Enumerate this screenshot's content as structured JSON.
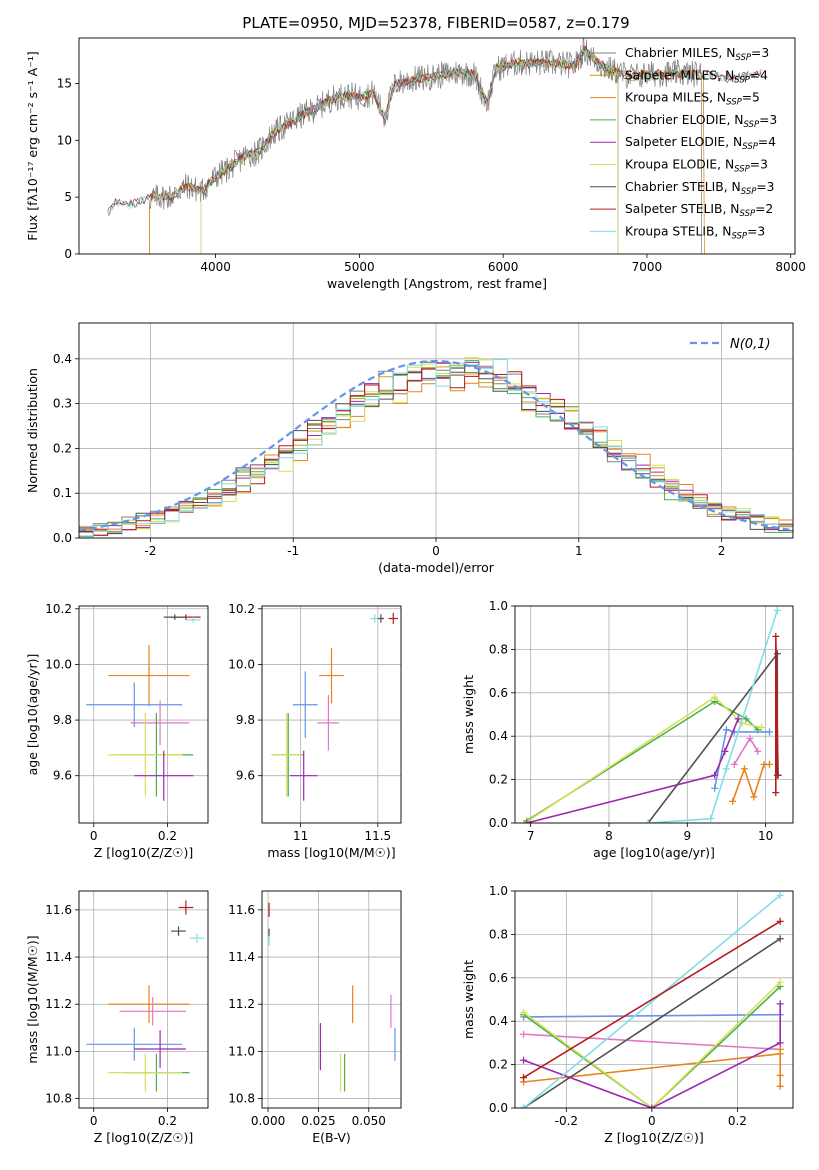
{
  "figure": {
    "title": "PLATE=0950, MJD=52378, FIBERID=0587, z=0.179"
  },
  "chart_data": [
    {
      "id": "spectrum",
      "type": "line",
      "xlabel": "wavelength [Angstrom, rest frame]",
      "ylabel": "Flux [fλ10⁻¹⁷ erg cm⁻² s⁻¹ A⁻¹]",
      "xlim": [
        3050,
        8030
      ],
      "ylim": [
        0,
        19
      ],
      "xticks": [
        4000,
        5000,
        6000,
        7000,
        8000
      ],
      "yticks": [
        0,
        5,
        10,
        15
      ],
      "grid": false,
      "legend_position": "right",
      "spectrum_anchors": [
        [
          3250,
          3.5
        ],
        [
          3300,
          4.6
        ],
        [
          3400,
          4.3
        ],
        [
          3500,
          4.8
        ],
        [
          3600,
          5.0
        ],
        [
          3700,
          5.1
        ],
        [
          3750,
          5.6
        ],
        [
          3800,
          6.0
        ],
        [
          3900,
          5.5
        ],
        [
          4000,
          6.8
        ],
        [
          4100,
          7.6
        ],
        [
          4200,
          8.6
        ],
        [
          4300,
          9.0
        ],
        [
          4400,
          10.6
        ],
        [
          4500,
          11.4
        ],
        [
          4600,
          12.2
        ],
        [
          4700,
          12.8
        ],
        [
          4800,
          13.6
        ],
        [
          4900,
          14.0
        ],
        [
          5000,
          13.8
        ],
        [
          5100,
          14.2
        ],
        [
          5175,
          12.0
        ],
        [
          5250,
          15.0
        ],
        [
          5400,
          15.4
        ],
        [
          5500,
          15.6
        ],
        [
          5600,
          15.8
        ],
        [
          5700,
          16.0
        ],
        [
          5800,
          15.8
        ],
        [
          5890,
          13.2
        ],
        [
          5950,
          16.3
        ],
        [
          6100,
          16.8
        ],
        [
          6300,
          16.8
        ],
        [
          6500,
          16.6
        ],
        [
          6563,
          18.0
        ],
        [
          6700,
          16.4
        ],
        [
          6900,
          15.6
        ],
        [
          7000,
          15.8
        ],
        [
          7200,
          15.9
        ],
        [
          7400,
          15.8
        ],
        [
          7600,
          15.4
        ],
        [
          7800,
          16.0
        ]
      ],
      "series": [
        {
          "name": "Chabrier MILES, N",
          "subscript": "SSP",
          "count": "=3",
          "color": "#808080",
          "range": [
            3540,
            7380
          ]
        },
        {
          "name": "Salpeter MILES, N",
          "subscript": "SSP",
          "count": "=4",
          "color": "#c6a020",
          "range": [
            3540,
            7400
          ]
        },
        {
          "name": "Kroupa MILES, N",
          "subscript": "SSP",
          "count": "=5",
          "color": "#e8831e",
          "range": [
            3540,
            7400
          ]
        },
        {
          "name": "Chabrier ELODIE, N",
          "subscript": "SSP",
          "count": "=3",
          "color": "#4caf50",
          "range": [
            3900,
            6800
          ]
        },
        {
          "name": "Salpeter ELODIE, N",
          "subscript": "SSP",
          "count": "=4",
          "color": "#9c27b0",
          "range": [
            3900,
            6800
          ]
        },
        {
          "name": "Kroupa ELODIE, N",
          "subscript": "SSP",
          "count": "=3",
          "color": "#d4e157",
          "range": [
            3900,
            6800
          ]
        },
        {
          "name": "Chabrier STELIB, N",
          "subscript": "SSP",
          "count": "=3",
          "color": "#505050",
          "range": [
            3250,
            7800
          ]
        },
        {
          "name": "Salpeter STELIB, N",
          "subscript": "SSP",
          "count": "=2",
          "color": "#b71c1c",
          "range": [
            3250,
            7800
          ]
        },
        {
          "name": "Kroupa STELIB, N",
          "subscript": "SSP",
          "count": "=3",
          "color": "#80deea",
          "range": [
            3250,
            7800
          ]
        }
      ]
    },
    {
      "id": "residuals",
      "type": "line",
      "xlabel": "(data-model)/error",
      "ylabel": "Normed distribution",
      "xlim": [
        -2.5,
        2.5
      ],
      "ylim": [
        0,
        0.48
      ],
      "xticks": [
        -2,
        -1,
        0,
        1,
        2
      ],
      "yticks": [
        0.0,
        0.1,
        0.2,
        0.3,
        0.4
      ],
      "grid": true,
      "legend_position": "top-right",
      "reference": {
        "name": "N(0,1)",
        "color": "#6495ed",
        "style": "dashed"
      },
      "bin_width": 0.1,
      "histogram_colors": [
        "#808080",
        "#c6a020",
        "#e8831e",
        "#4caf50",
        "#9c27b0",
        "#d4e157",
        "#505050",
        "#b71c1c",
        "#80deea"
      ]
    },
    {
      "id": "age-vs-Z",
      "type": "scatter",
      "xlabel": "Z [log10(Z/Z☉)]",
      "ylabel": "age  [log10(age/yr)]",
      "xlim": [
        -0.04,
        0.31
      ],
      "ylim": [
        9.43,
        10.21
      ],
      "xticks": [
        0.0,
        0.2
      ],
      "yticks": [
        9.6,
        9.8,
        10.0,
        10.2
      ],
      "grid": true,
      "points": [
        {
          "x": 0.25,
          "xerr": 0.04,
          "y": 10.17,
          "yerr": 0.01,
          "color": "#b71c1c"
        },
        {
          "x": 0.22,
          "xerr": 0.03,
          "y": 10.17,
          "yerr": 0.01,
          "color": "#505050"
        },
        {
          "x": 0.27,
          "xerr": 0.02,
          "y": 10.16,
          "yerr": 0.01,
          "color": "#80deea"
        },
        {
          "x": 0.15,
          "xerr": 0.11,
          "y": 9.96,
          "yerr": 0.11,
          "color": "#e8831e"
        },
        {
          "x": 0.11,
          "xerr": 0.13,
          "y": 9.855,
          "yerr": 0.08,
          "color": "#6495ed"
        },
        {
          "x": 0.18,
          "xerr": 0.08,
          "y": 9.79,
          "yerr": 0.08,
          "color": "#e377c2"
        },
        {
          "x": 0.17,
          "xerr": 0.1,
          "y": 9.675,
          "yerr": 0.15,
          "color": "#4caf50"
        },
        {
          "x": 0.14,
          "xerr": 0.1,
          "y": 9.675,
          "yerr": 0.15,
          "color": "#d4e157"
        },
        {
          "x": 0.19,
          "xerr": 0.08,
          "y": 9.6,
          "yerr": 0.09,
          "color": "#9c27b0"
        }
      ]
    },
    {
      "id": "age-vs-mass",
      "type": "scatter",
      "xlabel": "mass [log10(M/M☉)]",
      "ylabel": "",
      "xlim": [
        10.75,
        11.65
      ],
      "ylim": [
        9.43,
        10.21
      ],
      "xticks": [
        11.0,
        11.5
      ],
      "yticks": [
        9.6,
        9.8,
        10.0,
        10.2
      ],
      "grid": true,
      "points": [
        {
          "x": 11.48,
          "xerr": 0.03,
          "y": 10.165,
          "yerr": 0.015,
          "color": "#80deea"
        },
        {
          "x": 11.52,
          "xerr": 0.02,
          "y": 10.165,
          "yerr": 0.015,
          "color": "#505050"
        },
        {
          "x": 11.6,
          "xerr": 0.03,
          "y": 10.165,
          "yerr": 0.02,
          "color": "#b71c1c"
        },
        {
          "x": 11.2,
          "xerr": 0.08,
          "y": 9.96,
          "yerr": 0.1,
          "color": "#e8831e"
        },
        {
          "x": 11.03,
          "xerr": 0.08,
          "y": 9.855,
          "yerr": 0.12,
          "color": "#6495ed"
        },
        {
          "x": 11.18,
          "xerr": 0.07,
          "y": 9.79,
          "yerr": 0.1,
          "color": "#e377c2"
        },
        {
          "x": 10.92,
          "xerr": 0.1,
          "y": 9.675,
          "yerr": 0.15,
          "color": "#4caf50"
        },
        {
          "x": 10.91,
          "xerr": 0.1,
          "y": 9.675,
          "yerr": 0.15,
          "color": "#d4e157"
        },
        {
          "x": 11.02,
          "xerr": 0.09,
          "y": 9.6,
          "yerr": 0.09,
          "color": "#9c27b0"
        }
      ]
    },
    {
      "id": "weight-vs-age",
      "type": "line",
      "xlabel": "age  [log10(age/yr)]",
      "ylabel": "mass weight",
      "xlim": [
        6.8,
        10.35
      ],
      "ylim": [
        0,
        1.0
      ],
      "xticks": [
        7,
        8,
        9,
        10
      ],
      "yticks": [
        0.0,
        0.2,
        0.4,
        0.6,
        0.8,
        1.0
      ],
      "grid": true,
      "series": [
        {
          "color": "#e8831e",
          "x": [
            9.58,
            9.73,
            9.85,
            9.98,
            10.05
          ],
          "y": [
            0.1,
            0.25,
            0.12,
            0.27,
            0.27
          ]
        },
        {
          "color": "#e377c2",
          "x": [
            9.6,
            9.8,
            9.9
          ],
          "y": [
            0.27,
            0.39,
            0.33
          ]
        },
        {
          "color": "#6495ed",
          "x": [
            9.35,
            9.5,
            9.6,
            10.05
          ],
          "y": [
            0.16,
            0.43,
            0.42,
            0.42
          ]
        },
        {
          "color": "#4caf50",
          "x": [
            6.95,
            9.35,
            9.75,
            9.9
          ],
          "y": [
            0.01,
            0.56,
            0.48,
            0.43
          ]
        },
        {
          "color": "#d4e157",
          "x": [
            6.95,
            9.35,
            9.7,
            9.95
          ],
          "y": [
            0.005,
            0.58,
            0.46,
            0.44
          ]
        },
        {
          "color": "#9c27b0",
          "x": [
            6.95,
            9.35,
            9.48,
            9.65
          ],
          "y": [
            0.0,
            0.22,
            0.33,
            0.48
          ]
        },
        {
          "color": "#505050",
          "x": [
            8.5,
            10.15,
            10.15
          ],
          "y": [
            0.0,
            0.78,
            0.22
          ]
        },
        {
          "color": "#80deea",
          "x": [
            8.5,
            9.3,
            9.5,
            10.15
          ],
          "y": [
            0.0,
            0.02,
            0.25,
            0.98
          ]
        },
        {
          "color": "#b71c1c",
          "x": [
            10.13,
            10.13,
            10.16
          ],
          "y": [
            0.14,
            0.86,
            0.22
          ]
        }
      ]
    },
    {
      "id": "mass-vs-Z",
      "type": "scatter",
      "xlabel": "Z [log10(Z/Z☉)]",
      "ylabel": "mass [log10(M/M☉)]",
      "xlim": [
        -0.04,
        0.31
      ],
      "ylim": [
        10.76,
        11.68
      ],
      "xticks": [
        0.0,
        0.2
      ],
      "yticks": [
        10.8,
        11.0,
        11.2,
        11.4,
        11.6
      ],
      "grid": true,
      "points": [
        {
          "x": 0.25,
          "xerr": 0.02,
          "y": 11.61,
          "yerr": 0.03,
          "color": "#b71c1c"
        },
        {
          "x": 0.23,
          "xerr": 0.02,
          "y": 11.51,
          "yerr": 0.02,
          "color": "#505050"
        },
        {
          "x": 0.28,
          "xerr": 0.02,
          "y": 11.48,
          "yerr": 0.02,
          "color": "#80deea"
        },
        {
          "x": 0.15,
          "xerr": 0.11,
          "y": 11.2,
          "yerr": 0.08,
          "color": "#e8831e"
        },
        {
          "x": 0.16,
          "xerr": 0.09,
          "y": 11.17,
          "yerr": 0.06,
          "color": "#e377c2"
        },
        {
          "x": 0.11,
          "xerr": 0.13,
          "y": 11.03,
          "yerr": 0.07,
          "color": "#6495ed"
        },
        {
          "x": 0.18,
          "xerr": 0.07,
          "y": 11.01,
          "yerr": 0.08,
          "color": "#9c27b0"
        },
        {
          "x": 0.17,
          "xerr": 0.09,
          "y": 10.91,
          "yerr": 0.08,
          "color": "#4caf50"
        },
        {
          "x": 0.14,
          "xerr": 0.1,
          "y": 10.91,
          "yerr": 0.08,
          "color": "#d4e157"
        }
      ]
    },
    {
      "id": "mass-vs-EBV",
      "type": "scatter",
      "xlabel": "E(B-V)",
      "ylabel": "",
      "xlim": [
        -0.003,
        0.066
      ],
      "ylim": [
        10.76,
        11.68
      ],
      "xticks": [
        0.0,
        0.025,
        0.05
      ],
      "ytick_labels": [
        "0.000",
        "0.025",
        "0.050"
      ],
      "yticks": [
        10.8,
        11.0,
        11.2,
        11.4,
        11.6
      ],
      "grid": true,
      "points": [
        {
          "x": 0.0005,
          "y": 11.6,
          "yerr": 0.03,
          "color": "#b71c1c"
        },
        {
          "x": 0.0005,
          "y": 11.5,
          "yerr": 0.02,
          "color": "#505050"
        },
        {
          "x": 0.0005,
          "y": 11.47,
          "yerr": 0.02,
          "color": "#80deea"
        },
        {
          "x": 0.042,
          "y": 11.2,
          "yerr": 0.08,
          "color": "#e8831e"
        },
        {
          "x": 0.061,
          "y": 11.17,
          "yerr": 0.07,
          "color": "#e377c2"
        },
        {
          "x": 0.063,
          "y": 11.03,
          "yerr": 0.07,
          "color": "#6495ed"
        },
        {
          "x": 0.026,
          "y": 11.02,
          "yerr": 0.1,
          "color": "#9c27b0"
        },
        {
          "x": 0.038,
          "y": 10.91,
          "yerr": 0.08,
          "color": "#4caf50"
        },
        {
          "x": 0.036,
          "y": 10.91,
          "yerr": 0.08,
          "color": "#d4e157"
        }
      ]
    },
    {
      "id": "weight-vs-Z",
      "type": "line",
      "xlabel": "Z [log10(Z/Z☉)]",
      "ylabel": "mass weight",
      "xlim": [
        -0.32,
        0.33
      ],
      "ylim": [
        0,
        1.0
      ],
      "xticks": [
        -0.2,
        0.0,
        0.2
      ],
      "yticks": [
        0.0,
        0.2,
        0.4,
        0.6,
        0.8,
        1.0
      ],
      "grid": true,
      "series": [
        {
          "color": "#6495ed",
          "x": [
            -0.3,
            0.3
          ],
          "y": [
            0.42,
            0.43
          ]
        },
        {
          "color": "#e377c2",
          "x": [
            -0.3,
            0.3
          ],
          "y": [
            0.34,
            0.27
          ]
        },
        {
          "color": "#e8831e",
          "x": [
            -0.3,
            0.3,
            0.3,
            0.3,
            0.3
          ],
          "y": [
            0.12,
            0.25,
            0.1,
            0.27,
            0.15
          ]
        },
        {
          "color": "#4caf50",
          "x": [
            -0.3,
            0.0,
            0.3
          ],
          "y": [
            0.43,
            0.0,
            0.56
          ]
        },
        {
          "color": "#d4e157",
          "x": [
            -0.3,
            0.0,
            0.3
          ],
          "y": [
            0.44,
            0.0,
            0.58
          ]
        },
        {
          "color": "#9c27b0",
          "x": [
            -0.3,
            0.0,
            0.3,
            0.3
          ],
          "y": [
            0.22,
            0.0,
            0.3,
            0.48
          ]
        },
        {
          "color": "#505050",
          "x": [
            -0.3,
            0.3
          ],
          "y": [
            0.0,
            0.78
          ]
        },
        {
          "color": "#80deea",
          "x": [
            -0.3,
            0.3
          ],
          "y": [
            0.0,
            0.98
          ]
        },
        {
          "color": "#b71c1c",
          "x": [
            -0.3,
            0.3
          ],
          "y": [
            0.14,
            0.86
          ]
        }
      ]
    }
  ]
}
